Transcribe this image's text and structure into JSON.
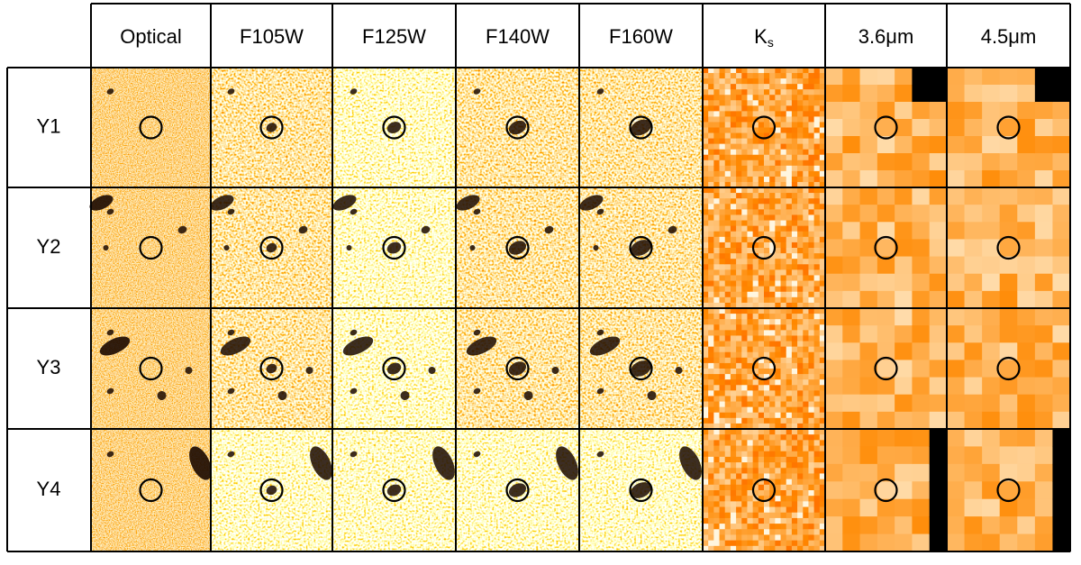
{
  "columns": [
    "Optical",
    "F105W",
    "F125W",
    "F140W",
    "F160W",
    "K",
    "3.6μm",
    "4.5μm"
  ],
  "column_subscripts": {
    "5": "s"
  },
  "rows": [
    "Y1",
    "Y2",
    "Y3",
    "Y4"
  ]
}
